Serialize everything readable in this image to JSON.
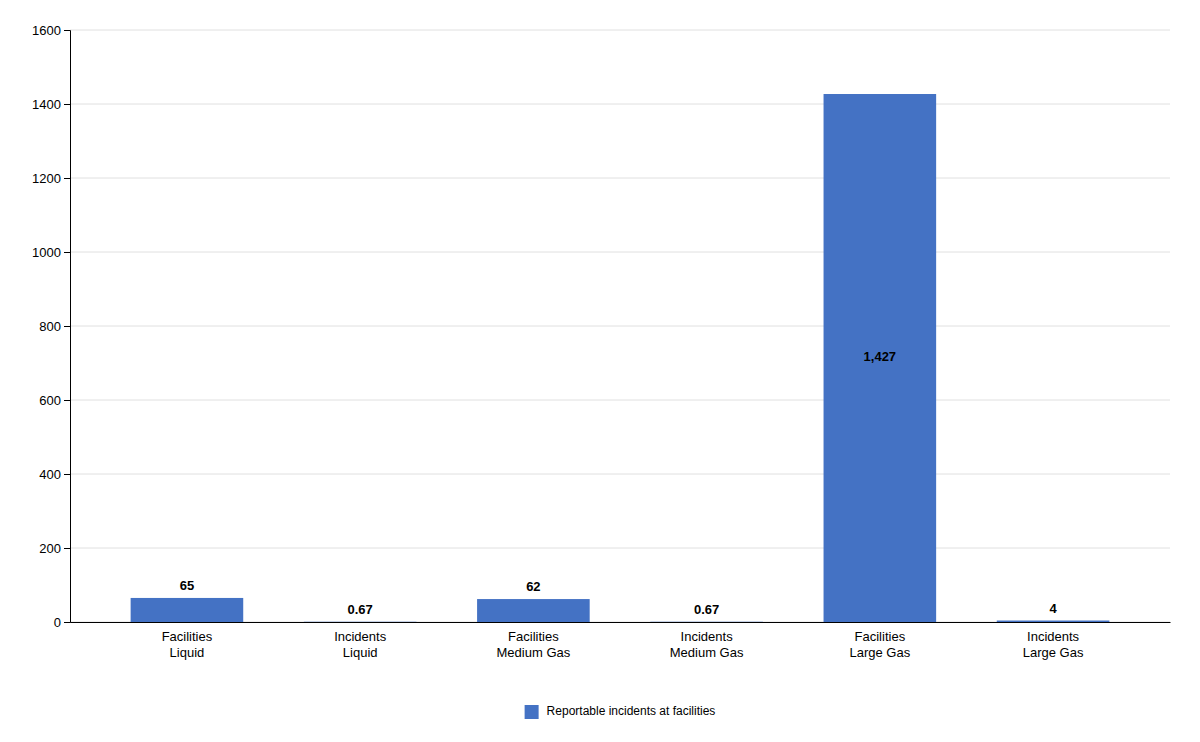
{
  "chart_data": {
    "type": "bar",
    "categories": [
      "Facilities\nLiquid",
      "Incidents\nLiquid",
      "Facilities\nMedium Gas",
      "Incidents\nMedium Gas",
      "Facilities\nLarge Gas",
      "Incidents\nLarge Gas"
    ],
    "series": [
      {
        "name": "Reportable incidents at facilities",
        "color": "#4472C4",
        "values": [
          65,
          0.67,
          62,
          0.67,
          1427,
          4
        ],
        "value_labels": [
          "65",
          "0.67",
          "62",
          "0.67",
          "1,427",
          "4"
        ]
      }
    ],
    "ylim": [
      0,
      1600
    ],
    "yticks": [
      0,
      200,
      400,
      600,
      800,
      1000,
      1200,
      1400,
      1600
    ],
    "grid": true,
    "legend": "bottom",
    "data_labels": true
  }
}
